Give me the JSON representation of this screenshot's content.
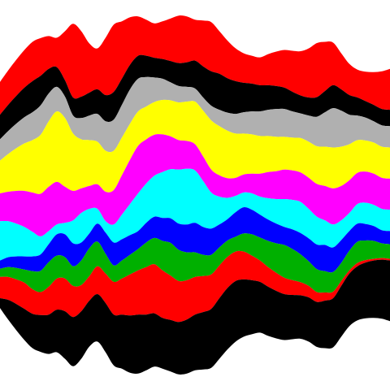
{
  "chart_data": {
    "type": "area",
    "stacked": true,
    "baseline": "wiggle",
    "axes_visible": false,
    "grid": false,
    "legend": "none",
    "x": [
      0,
      1,
      2,
      3,
      4,
      5,
      6,
      7,
      8,
      9,
      10,
      11,
      12,
      13,
      14,
      15,
      16,
      17,
      18,
      19,
      20,
      21,
      22,
      23,
      24,
      25,
      26,
      27,
      28,
      29,
      30,
      31,
      32,
      33,
      34,
      35,
      36,
      37,
      38,
      39,
      40,
      41,
      42,
      43,
      44,
      45,
      46,
      47,
      48
    ],
    "series": [
      {
        "color": "#000000",
        "values": [
          12,
          24,
          32,
          38,
          42,
          45,
          48,
          52,
          58,
          60,
          58,
          56,
          58,
          60,
          62,
          66,
          70,
          72,
          68,
          65,
          62,
          63,
          64,
          66,
          68,
          70,
          72,
          74,
          75,
          74,
          70,
          66,
          62,
          60,
          58,
          56,
          54,
          53,
          54,
          55,
          58,
          60,
          62,
          64,
          66,
          68,
          70,
          72,
          74
        ]
      },
      {
        "color": "#ff0000",
        "values": [
          26,
          28,
          30,
          32,
          30,
          28,
          34,
          38,
          40,
          38,
          32,
          30,
          34,
          36,
          40,
          44,
          50,
          54,
          58,
          60,
          58,
          54,
          50,
          48,
          46,
          44,
          42,
          40,
          38,
          36,
          34,
          30,
          26,
          24,
          22,
          20,
          18,
          16,
          14,
          12,
          10,
          8,
          6,
          4,
          4,
          3,
          2,
          2,
          2
        ]
      },
      {
        "color": "#00b000",
        "values": [
          10,
          12,
          14,
          16,
          22,
          26,
          30,
          28,
          26,
          24,
          30,
          34,
          30,
          24,
          20,
          22,
          24,
          26,
          30,
          32,
          36,
          40,
          38,
          34,
          30,
          26,
          24,
          22,
          20,
          18,
          22,
          26,
          28,
          32,
          36,
          40,
          38,
          34,
          30,
          28,
          26,
          24,
          22,
          24,
          26,
          24,
          22,
          18,
          18
        ]
      },
      {
        "color": "#0000ff",
        "values": [
          10,
          12,
          14,
          16,
          18,
          20,
          22,
          26,
          28,
          28,
          22,
          18,
          22,
          26,
          28,
          26,
          24,
          22,
          24,
          26,
          28,
          30,
          32,
          34,
          36,
          34,
          32,
          28,
          26,
          30,
          32,
          30,
          28,
          26,
          24,
          22,
          24,
          26,
          28,
          30,
          32,
          30,
          28,
          24,
          22,
          20,
          18,
          16,
          16
        ]
      },
      {
        "color": "#00ffff",
        "values": [
          48,
          44,
          40,
          36,
          30,
          22,
          16,
          12,
          14,
          28,
          36,
          30,
          18,
          14,
          22,
          30,
          38,
          46,
          48,
          50,
          56,
          60,
          66,
          68,
          64,
          56,
          44,
          34,
          26,
          20,
          18,
          20,
          22,
          26,
          30,
          34,
          36,
          38,
          36,
          34,
          30,
          28,
          24,
          22,
          24,
          26,
          26,
          26,
          26
        ]
      },
      {
        "color": "#ff00ff",
        "values": [
          34,
          36,
          40,
          44,
          48,
          52,
          54,
          52,
          44,
          36,
          30,
          28,
          30,
          36,
          42,
          48,
          54,
          58,
          54,
          50,
          46,
          40,
          36,
          34,
          32,
          30,
          28,
          26,
          24,
          22,
          22,
          24,
          28,
          32,
          34,
          36,
          36,
          36,
          38,
          40,
          42,
          44,
          42,
          40,
          38,
          38,
          38,
          38,
          38
        ]
      },
      {
        "color": "#ffff00",
        "values": [
          40,
          46,
          52,
          58,
          64,
          72,
          80,
          86,
          84,
          70,
          60,
          56,
          52,
          50,
          48,
          46,
          44,
          42,
          40,
          40,
          42,
          44,
          46,
          48,
          52,
          56,
          60,
          60,
          58,
          54,
          50,
          48,
          46,
          44,
          42,
          40,
          40,
          42,
          44,
          46,
          48,
          50,
          48,
          44,
          40,
          38,
          38,
          38,
          38
        ]
      },
      {
        "color": "#b0b0b0",
        "values": [
          26,
          28,
          30,
          32,
          34,
          36,
          34,
          30,
          26,
          22,
          26,
          30,
          34,
          36,
          38,
          40,
          42,
          40,
          36,
          30,
          26,
          22,
          20,
          18,
          16,
          16,
          18,
          20,
          22,
          24,
          26,
          28,
          30,
          32,
          34,
          34,
          32,
          30,
          32,
          36,
          42,
          48,
          44,
          36,
          30,
          28,
          26,
          26,
          26
        ]
      },
      {
        "color": "#000000",
        "values": [
          30,
          32,
          34,
          36,
          38,
          36,
          30,
          24,
          20,
          22,
          26,
          28,
          30,
          32,
          34,
          32,
          30,
          28,
          26,
          24,
          24,
          26,
          28,
          30,
          34,
          38,
          42,
          44,
          42,
          40,
          36,
          34,
          32,
          30,
          28,
          26,
          24,
          22,
          22,
          24,
          26,
          28,
          26,
          24,
          22,
          20,
          20,
          20,
          20
        ]
      },
      {
        "color": "#ff0000",
        "values": [
          40,
          42,
          44,
          46,
          48,
          46,
          40,
          36,
          60,
          90,
          80,
          60,
          50,
          70,
          82,
          70,
          58,
          48,
          44,
          42,
          46,
          52,
          58,
          56,
          50,
          56,
          60,
          52,
          46,
          40,
          36,
          34,
          34,
          38,
          42,
          46,
          50,
          54,
          60,
          66,
          60,
          52,
          44,
          38,
          34,
          36,
          40,
          46,
          50
        ]
      }
    ],
    "palette": [
      "#000000",
      "#ff0000",
      "#00b000",
      "#0000ff",
      "#00ffff",
      "#ff00ff",
      "#ffff00",
      "#b0b0b0",
      "#000000",
      "#ff0000"
    ]
  }
}
